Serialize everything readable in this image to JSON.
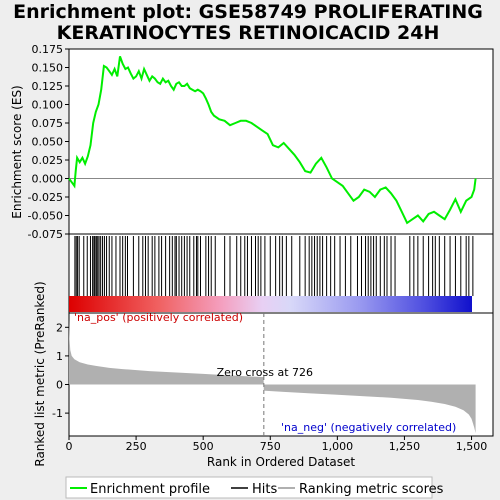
{
  "title_line1": "Enrichment plot: GSE58749 PROLIFERATING",
  "title_line2": "KERATINOCYTES RETINOICACID 24H",
  "legend": {
    "enrichment_profile": "Enrichment profile",
    "hits": "Hits",
    "ranking_metric": "Ranking metric scores"
  },
  "colors": {
    "enrichment_line": "#00ee00",
    "hits": "#000000",
    "metric_fill": "#b0b0b0",
    "pos_label": "#cc0000",
    "neg_label": "#0000cc",
    "heatmap_pos": "#dd0000",
    "heatmap_neg": "#1010cc"
  },
  "chart_data": [
    {
      "type": "line",
      "name": "enrichment-score-panel",
      "ylabel": "Enrichment score (ES)",
      "ylim": [
        -0.075,
        0.175
      ],
      "yticks": [
        -0.075,
        -0.05,
        -0.025,
        0.0,
        0.025,
        0.05,
        0.075,
        0.1,
        0.125,
        0.15,
        0.175
      ],
      "ytick_labels": [
        "-0.075",
        "-0.050",
        "-0.025",
        "0.000",
        "0.025",
        "0.050",
        "0.075",
        "0.100",
        "0.125",
        "0.150",
        "0.175"
      ],
      "xlim": [
        0,
        1580
      ],
      "series": [
        {
          "name": "Enrichment profile",
          "x": [
            0,
            10,
            20,
            25,
            30,
            40,
            50,
            60,
            70,
            80,
            90,
            100,
            110,
            120,
            130,
            140,
            150,
            160,
            170,
            180,
            190,
            200,
            210,
            220,
            230,
            240,
            250,
            260,
            270,
            280,
            290,
            300,
            310,
            320,
            330,
            340,
            350,
            360,
            370,
            380,
            390,
            400,
            410,
            420,
            430,
            440,
            450,
            460,
            470,
            480,
            490,
            500,
            510,
            520,
            530,
            540,
            560,
            580,
            600,
            620,
            640,
            660,
            680,
            700,
            720,
            740,
            760,
            780,
            800,
            820,
            840,
            860,
            880,
            900,
            920,
            940,
            960,
            980,
            1000,
            1020,
            1040,
            1060,
            1080,
            1100,
            1120,
            1140,
            1160,
            1180,
            1200,
            1220,
            1240,
            1260,
            1280,
            1300,
            1320,
            1340,
            1360,
            1380,
            1400,
            1420,
            1440,
            1460,
            1480,
            1500,
            1510,
            1515
          ],
          "y": [
            0.0,
            -0.005,
            -0.01,
            0.01,
            0.028,
            0.022,
            0.028,
            0.02,
            0.03,
            0.045,
            0.075,
            0.09,
            0.1,
            0.12,
            0.152,
            0.15,
            0.145,
            0.14,
            0.148,
            0.138,
            0.165,
            0.155,
            0.148,
            0.15,
            0.142,
            0.135,
            0.138,
            0.145,
            0.135,
            0.148,
            0.14,
            0.132,
            0.138,
            0.135,
            0.13,
            0.128,
            0.135,
            0.13,
            0.132,
            0.125,
            0.12,
            0.128,
            0.13,
            0.125,
            0.125,
            0.128,
            0.122,
            0.12,
            0.118,
            0.12,
            0.118,
            0.115,
            0.108,
            0.1,
            0.09,
            0.085,
            0.08,
            0.078,
            0.072,
            0.075,
            0.078,
            0.078,
            0.075,
            0.07,
            0.065,
            0.06,
            0.045,
            0.042,
            0.048,
            0.04,
            0.032,
            0.022,
            0.01,
            0.008,
            0.02,
            0.028,
            0.015,
            0.0,
            -0.005,
            -0.01,
            -0.02,
            -0.03,
            -0.025,
            -0.015,
            -0.018,
            -0.025,
            -0.015,
            -0.012,
            -0.02,
            -0.03,
            -0.045,
            -0.06,
            -0.055,
            -0.05,
            -0.058,
            -0.048,
            -0.045,
            -0.05,
            -0.055,
            -0.042,
            -0.028,
            -0.045,
            -0.03,
            -0.025,
            -0.015,
            0.0
          ]
        }
      ]
    },
    {
      "type": "scatter",
      "name": "hits-panel",
      "series": [
        {
          "name": "Hits",
          "x": [
            22,
            27,
            32,
            38,
            55,
            68,
            80,
            88,
            93,
            97,
            102,
            107,
            112,
            118,
            125,
            132,
            140,
            150,
            160,
            175,
            190,
            200,
            210,
            218,
            240,
            260,
            275,
            285,
            295,
            310,
            320,
            335,
            345,
            360,
            375,
            385,
            395,
            400,
            410,
            420,
            430,
            440,
            450,
            465,
            475,
            480,
            490,
            510,
            520,
            530,
            545,
            580,
            600,
            625,
            640,
            655,
            665,
            680,
            695,
            705,
            715,
            730,
            750,
            770,
            785,
            795,
            810,
            830,
            860,
            880,
            895,
            905,
            915,
            925,
            935,
            945,
            960,
            975,
            990,
            1010,
            1030,
            1050,
            1075,
            1090,
            1105,
            1115,
            1125,
            1135,
            1145,
            1160,
            1175,
            1185,
            1200,
            1215,
            1270,
            1285,
            1300,
            1320,
            1340,
            1355,
            1365,
            1380,
            1400,
            1420,
            1440,
            1460,
            1480,
            1490,
            1505
          ]
        }
      ]
    },
    {
      "type": "area",
      "name": "ranking-metric-panel",
      "xlabel": "Rank in Ordered Dataset",
      "ylabel": "Ranked list metric (PreRanked)",
      "ylim": [
        -1.8,
        2.5
      ],
      "yticks": [
        -1,
        0,
        1,
        2
      ],
      "ytick_labels": [
        "-1",
        "0",
        "1",
        "2"
      ],
      "xlim": [
        0,
        1580
      ],
      "xticks": [
        0,
        250,
        500,
        750,
        1000,
        1250,
        1500
      ],
      "xtick_labels": [
        "0",
        "250",
        "500",
        "750",
        "1,000",
        "1,250",
        "1,500"
      ],
      "series": [
        {
          "name": "Ranking metric scores",
          "x": [
            0,
            2,
            5,
            10,
            20,
            40,
            70,
            100,
            150,
            200,
            300,
            400,
            500,
            600,
            700,
            725,
            726,
            730,
            800,
            900,
            1000,
            1100,
            1200,
            1300,
            1350,
            1400,
            1440,
            1470,
            1490,
            1500,
            1505,
            1510,
            1515
          ],
          "y": [
            2.3,
            1.6,
            1.2,
            1.0,
            0.88,
            0.78,
            0.7,
            0.65,
            0.58,
            0.54,
            0.47,
            0.42,
            0.37,
            0.32,
            0.27,
            0.26,
            -0.2,
            -0.22,
            -0.26,
            -0.31,
            -0.36,
            -0.41,
            -0.46,
            -0.54,
            -0.6,
            -0.68,
            -0.78,
            -0.9,
            -1.05,
            -1.2,
            -1.35,
            -1.5,
            -1.7
          ]
        }
      ],
      "annotations": {
        "zero_cross_rank": 726,
        "zero_cross_label": "Zero cross at 726",
        "pos_label": "'na_pos' (positively correlated)",
        "neg_label": "'na_neg' (negatively correlated)"
      }
    }
  ]
}
